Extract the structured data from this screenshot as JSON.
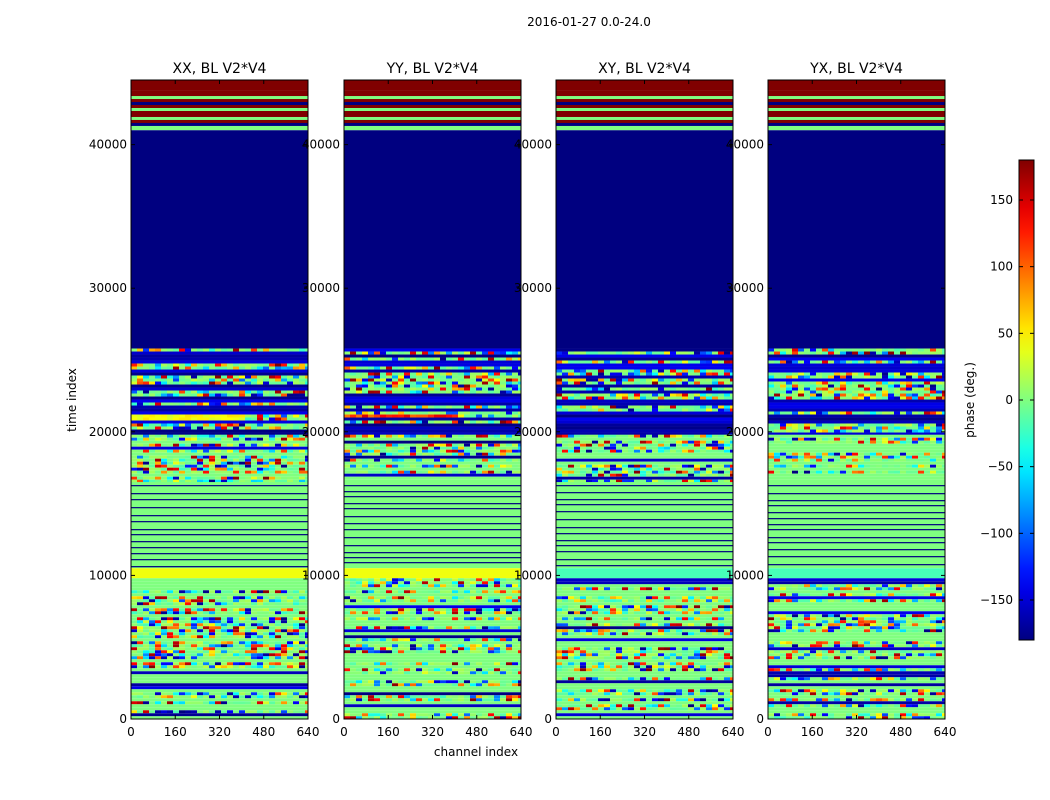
{
  "chart_data": {
    "type": "heatmap",
    "suptitle": "2016-01-27 0.0-24.0",
    "xlabel": "channel index",
    "ylabel": "time index",
    "colorbar_label": "phase (deg.)",
    "colorbar_range": [
      -180,
      180
    ],
    "colorbar_ticks": [
      -150,
      -100,
      -50,
      0,
      50,
      100,
      150
    ],
    "colorbar_tick_labels": [
      "−150",
      "−100",
      "−50",
      "0",
      "50",
      "100",
      "150"
    ],
    "colormap": "jet",
    "x_range": [
      0,
      640
    ],
    "x_ticks": [
      0,
      160,
      320,
      480,
      640
    ],
    "x_tick_labels": [
      "0",
      "160",
      "320",
      "480",
      "640"
    ],
    "y_range": [
      0,
      44500
    ],
    "y_ticks": [
      0,
      10000,
      20000,
      30000,
      40000
    ],
    "y_tick_labels": [
      "0",
      "10000",
      "20000",
      "30000",
      "40000"
    ],
    "panels": [
      {
        "title": "XX, BL V2*V4",
        "polarization": "XX"
      },
      {
        "title": "YY, BL V2*V4",
        "polarization": "YY"
      },
      {
        "title": "XY, BL V2*V4",
        "polarization": "XY"
      },
      {
        "title": "YX, BL V2*V4",
        "polarization": "YX"
      }
    ],
    "bands": [
      {
        "from": 43800,
        "to": 44500,
        "kind": "solid",
        "phase": 180
      },
      {
        "from": 41300,
        "to": 43800,
        "kind": "stripes",
        "colors": [
          180,
          180,
          0,
          180,
          -180,
          180,
          0
        ]
      },
      {
        "from": 41000,
        "to": 41300,
        "kind": "solid",
        "phase": 0
      },
      {
        "from": 25800,
        "to": 41000,
        "kind": "solid",
        "phase": -180
      },
      {
        "from": 19800,
        "to": 25800,
        "kind": "noise",
        "hot": [
          20800,
          21300
        ]
      },
      {
        "from": 16500,
        "to": 19800,
        "kind": "noise_light"
      },
      {
        "from": 10500,
        "to": 16500,
        "kind": "lined",
        "phase": 0
      },
      {
        "from": 9800,
        "to": 10500,
        "kind": "solid",
        "phase": 40
      },
      {
        "from": 0,
        "to": 9800,
        "kind": "noise_light"
      }
    ]
  }
}
